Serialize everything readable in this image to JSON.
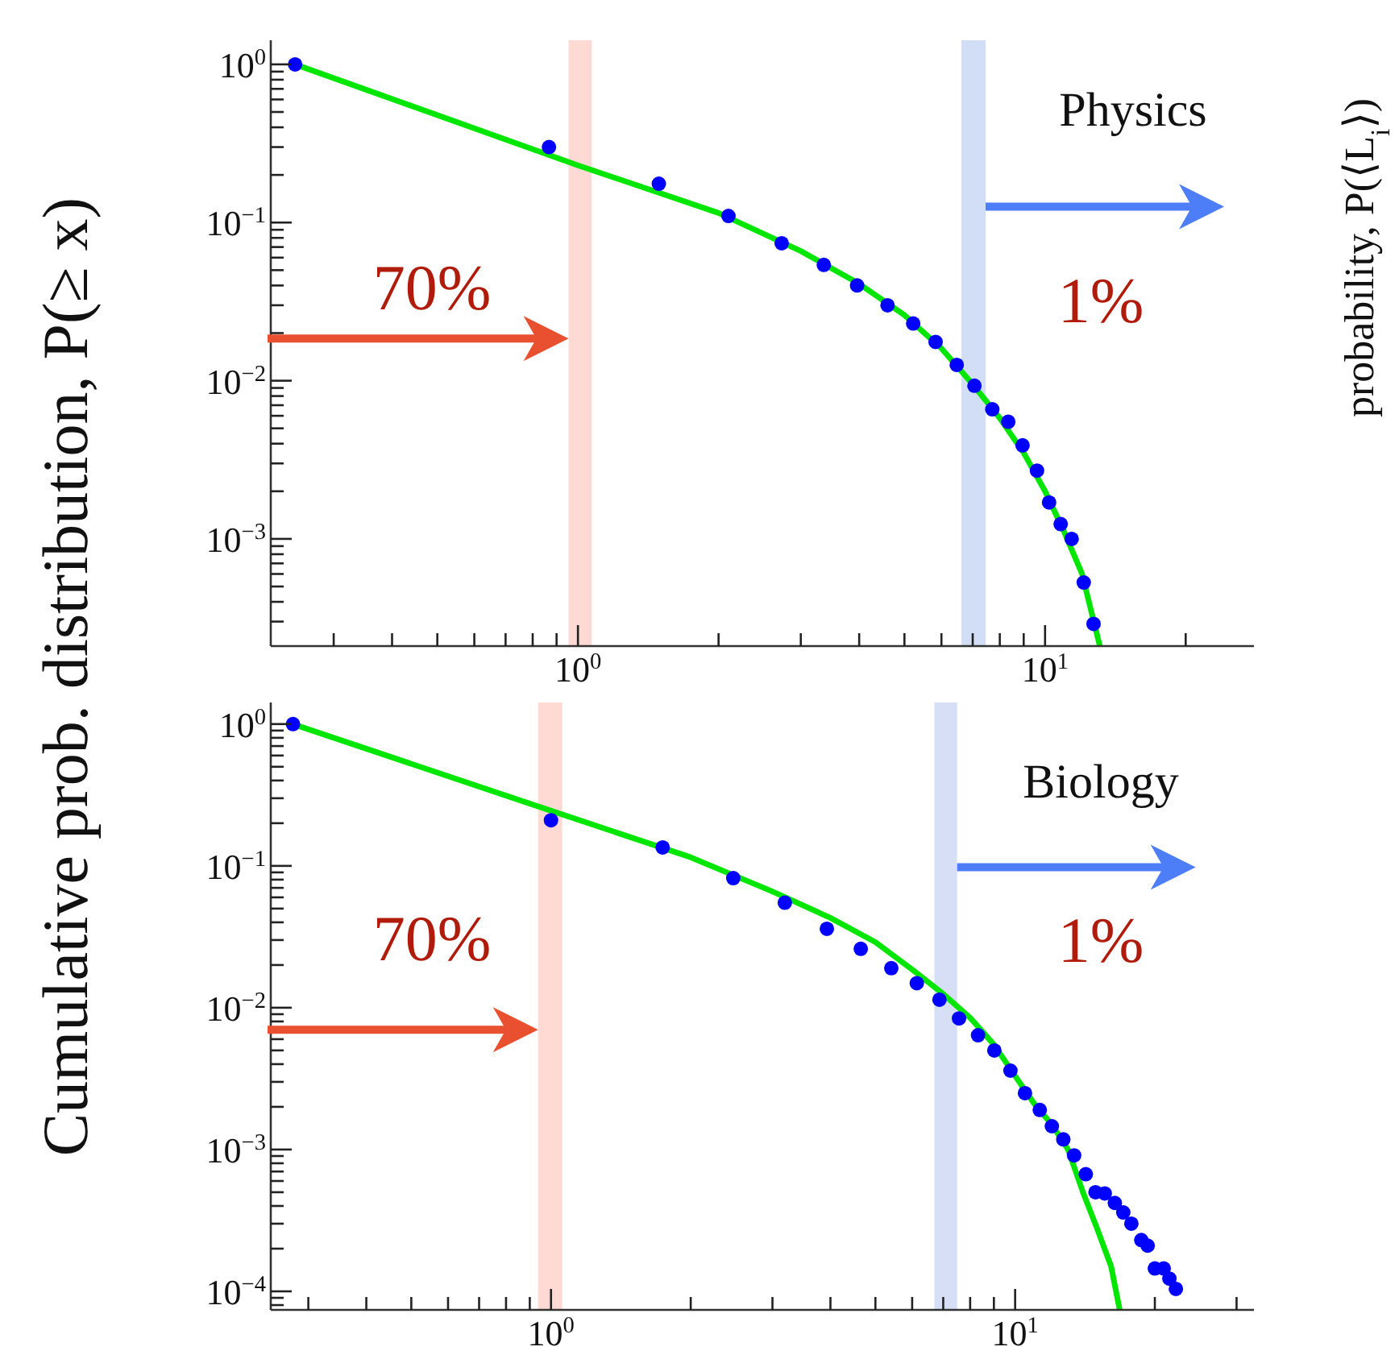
{
  "chart_data": [
    {
      "type": "scatter",
      "ylabel": "Cumulative prob. distribution, P(≥ x)",
      "log": "xy",
      "xlim": [
        0.22,
        28
      ],
      "ylim": [
        0.00021,
        1.42
      ],
      "xticks": [
        {
          "value": 0.3,
          "label": null
        },
        {
          "value": 0.4,
          "label": null
        },
        {
          "value": 0.5,
          "label": null
        },
        {
          "value": 0.6,
          "label": null
        },
        {
          "value": 0.7,
          "label": null
        },
        {
          "value": 0.8,
          "label": null
        },
        {
          "value": 0.9,
          "label": null
        },
        {
          "value": 1,
          "label": "10$^{0}$"
        },
        {
          "value": 2,
          "label": null
        },
        {
          "value": 3,
          "label": null
        },
        {
          "value": 4,
          "label": null
        },
        {
          "value": 5,
          "label": null
        },
        {
          "value": 6,
          "label": null
        },
        {
          "value": 7,
          "label": null
        },
        {
          "value": 8,
          "label": null
        },
        {
          "value": 9,
          "label": null
        },
        {
          "value": 10,
          "label": "10$^{1}$"
        },
        {
          "value": 20,
          "label": null
        }
      ],
      "yticks": [
        {
          "value": 1,
          "label": "10$^{0}$"
        },
        {
          "value": 0.9,
          "label": null
        },
        {
          "value": 0.8,
          "label": null
        },
        {
          "value": 0.7,
          "label": null
        },
        {
          "value": 0.6,
          "label": null
        },
        {
          "value": 0.5,
          "label": null
        },
        {
          "value": 0.4,
          "label": null
        },
        {
          "value": 0.3,
          "label": null
        },
        {
          "value": 0.2,
          "label": null
        },
        {
          "value": 0.1,
          "label": "10$^{−1}$"
        },
        {
          "value": 0.09,
          "label": null
        },
        {
          "value": 0.08,
          "label": null
        },
        {
          "value": 0.07,
          "label": null
        },
        {
          "value": 0.06,
          "label": null
        },
        {
          "value": 0.05,
          "label": null
        },
        {
          "value": 0.04,
          "label": null
        },
        {
          "value": 0.03,
          "label": null
        },
        {
          "value": 0.02,
          "label": null
        },
        {
          "value": 0.01,
          "label": "10$^{−2}$"
        },
        {
          "value": 0.009,
          "label": null
        },
        {
          "value": 0.008,
          "label": null
        },
        {
          "value": 0.007,
          "label": null
        },
        {
          "value": 0.006,
          "label": null
        },
        {
          "value": 0.005,
          "label": null
        },
        {
          "value": 0.004,
          "label": null
        },
        {
          "value": 0.003,
          "label": null
        },
        {
          "value": 0.002,
          "label": null
        },
        {
          "value": 0.001,
          "label": "10$^{−3}$"
        },
        {
          "value": 0.0009,
          "label": null
        },
        {
          "value": 0.0008,
          "label": null
        },
        {
          "value": 0.0007,
          "label": null
        },
        {
          "value": 0.0006,
          "label": null
        },
        {
          "value": 0.0005,
          "label": null
        },
        {
          "value": 0.0004,
          "label": null
        },
        {
          "value": 0.0003,
          "label": null
        }
      ],
      "series": [
        {
          "type": "scatter",
          "marker": "circle",
          "color": "#0000ff",
          "x": [
            0.248,
            0.867,
            1.49,
            2.1,
            2.73,
            3.36,
            3.96,
            4.6,
            5.22,
            5.83,
            6.47,
            7.06,
            7.71,
            8.34,
            8.95,
            9.61,
            10.2,
            10.8,
            11.4,
            12.1,
            12.7
          ],
          "values": [
            1,
            0.3,
            0.176,
            0.11,
            0.074,
            0.054,
            0.04,
            0.03,
            0.023,
            0.0176,
            0.0126,
            0.0093,
            0.0066,
            0.0055,
            0.0039,
            0.0027,
            0.0017,
            0.00124,
            0.001,
            0.00053,
            0.00029
          ]
        },
        {
          "type": "line",
          "color": "#00e600",
          "x": [
            0.248,
            1,
            2,
            3,
            4,
            5,
            6,
            7,
            8,
            9,
            10,
            11,
            12,
            13.1
          ],
          "values": [
            1,
            0.23,
            0.115,
            0.066,
            0.041,
            0.026,
            0.016,
            0.0095,
            0.0058,
            0.0035,
            0.002,
            0.0011,
            0.0006,
            0.00021
          ]
        }
      ],
      "bands": [
        {
          "axis": "x",
          "from": 0.955,
          "to": 1.07,
          "color": "#ffd3ce"
        },
        {
          "axis": "x",
          "from": 6.62,
          "to": 7.46,
          "color": "#c9d8f3"
        }
      ],
      "annotations": [
        "Physics",
        {
          "text": "70%",
          "x": 0.955,
          "y": 0.0185
        },
        {
          "text": "1%",
          "x": 7.46,
          "y": 0.126
        },
        "probability, P(⟨L$_{i}$⟩)"
      ]
    },
    {
      "type": "scatter",
      "log": "xy",
      "xlim": [
        0.249,
        32.7
      ],
      "ylim": [
        7.4e-05,
        1.42
      ],
      "xticks": [
        {
          "value": 0.3,
          "label": null
        },
        {
          "value": 0.4,
          "label": null
        },
        {
          "value": 0.5,
          "label": null
        },
        {
          "value": 0.6,
          "label": null
        },
        {
          "value": 0.7,
          "label": null
        },
        {
          "value": 0.8,
          "label": null
        },
        {
          "value": 0.9,
          "label": null
        },
        {
          "value": 1,
          "label": "10$^{0}$"
        },
        {
          "value": 2,
          "label": null
        },
        {
          "value": 3,
          "label": null
        },
        {
          "value": 4,
          "label": null
        },
        {
          "value": 5,
          "label": null
        },
        {
          "value": 6,
          "label": null
        },
        {
          "value": 7,
          "label": null
        },
        {
          "value": 8,
          "label": null
        },
        {
          "value": 9,
          "label": null
        },
        {
          "value": 10,
          "label": "10$^{1}$"
        },
        {
          "value": 20,
          "label": null
        },
        {
          "value": 30,
          "label": null
        }
      ],
      "yticks": [
        {
          "value": 1,
          "label": "10$^{0}$"
        },
        {
          "value": 0.9,
          "label": null
        },
        {
          "value": 0.8,
          "label": null
        },
        {
          "value": 0.7,
          "label": null
        },
        {
          "value": 0.6,
          "label": null
        },
        {
          "value": 0.5,
          "label": null
        },
        {
          "value": 0.4,
          "label": null
        },
        {
          "value": 0.3,
          "label": null
        },
        {
          "value": 0.2,
          "label": null
        },
        {
          "value": 0.1,
          "label": "10$^{−1}$"
        },
        {
          "value": 0.09,
          "label": null
        },
        {
          "value": 0.08,
          "label": null
        },
        {
          "value": 0.07,
          "label": null
        },
        {
          "value": 0.06,
          "label": null
        },
        {
          "value": 0.05,
          "label": null
        },
        {
          "value": 0.04,
          "label": null
        },
        {
          "value": 0.03,
          "label": null
        },
        {
          "value": 0.02,
          "label": null
        },
        {
          "value": 0.01,
          "label": "10$^{−2}$"
        },
        {
          "value": 0.009,
          "label": null
        },
        {
          "value": 0.008,
          "label": null
        },
        {
          "value": 0.007,
          "label": null
        },
        {
          "value": 0.006,
          "label": null
        },
        {
          "value": 0.005,
          "label": null
        },
        {
          "value": 0.004,
          "label": null
        },
        {
          "value": 0.003,
          "label": null
        },
        {
          "value": 0.002,
          "label": null
        },
        {
          "value": 0.001,
          "label": "10$^{−3}$"
        },
        {
          "value": 0.0009,
          "label": null
        },
        {
          "value": 0.0008,
          "label": null
        },
        {
          "value": 0.0007,
          "label": null
        },
        {
          "value": 0.0006,
          "label": null
        },
        {
          "value": 0.0005,
          "label": null
        },
        {
          "value": 0.0004,
          "label": null
        },
        {
          "value": 0.0003,
          "label": null
        },
        {
          "value": 0.0002,
          "label": null
        },
        {
          "value": 0.0001,
          "label": "10$^{−4}$"
        },
        {
          "value": 9e-05,
          "label": null
        },
        {
          "value": 8e-05,
          "label": null
        }
      ],
      "series": [
        {
          "type": "scatter",
          "marker": "circle",
          "color": "#0000ff",
          "x": [
            0.278,
            1.0,
            1.74,
            2.47,
            3.19,
            3.93,
            4.65,
            5.41,
            6.14,
            6.87,
            7.57,
            8.32,
            9.02,
            9.77,
            10.5,
            11.3,
            12.0,
            12.7,
            13.4,
            14.2,
            14.9,
            15.6,
            16.4,
            17.1,
            17.8,
            18.7,
            19.3,
            20.0,
            20.9,
            21.5,
            22.2
          ],
          "values": [
            1,
            0.21,
            0.135,
            0.082,
            0.055,
            0.036,
            0.026,
            0.019,
            0.0149,
            0.0114,
            0.0084,
            0.0064,
            0.005,
            0.0036,
            0.0025,
            0.0019,
            0.00146,
            0.00118,
            0.00091,
            0.00067,
            0.0005,
            0.00049,
            0.00042,
            0.00036,
            0.0003,
            0.00023,
            0.00021,
            0.000145,
            0.000145,
            0.000123,
            0.000104
          ]
        },
        {
          "type": "line",
          "color": "#00e600",
          "x": [
            0.278,
            1,
            2,
            3,
            4,
            5,
            6,
            7,
            8,
            9,
            10,
            11,
            12,
            13,
            14,
            15,
            16.1,
            16.8
          ],
          "values": [
            1,
            0.245,
            0.115,
            0.066,
            0.043,
            0.029,
            0.0186,
            0.0125,
            0.0085,
            0.0055,
            0.0033,
            0.0021,
            0.0015,
            0.001,
            0.0005,
            0.00028,
            0.00015,
            7.4e-05
          ]
        }
      ],
      "bands": [
        {
          "axis": "x",
          "from": 0.938,
          "to": 1.057,
          "color": "#ffd3ce"
        },
        {
          "axis": "x",
          "from": 6.7,
          "to": 7.5,
          "color": "#d0d9f5"
        }
      ],
      "annotations": [
        "Biology",
        {
          "text": "70%",
          "x": 0.938,
          "y": 0.007
        },
        {
          "text": "1%",
          "x": 7.5,
          "y": 0.098
        }
      ]
    }
  ]
}
